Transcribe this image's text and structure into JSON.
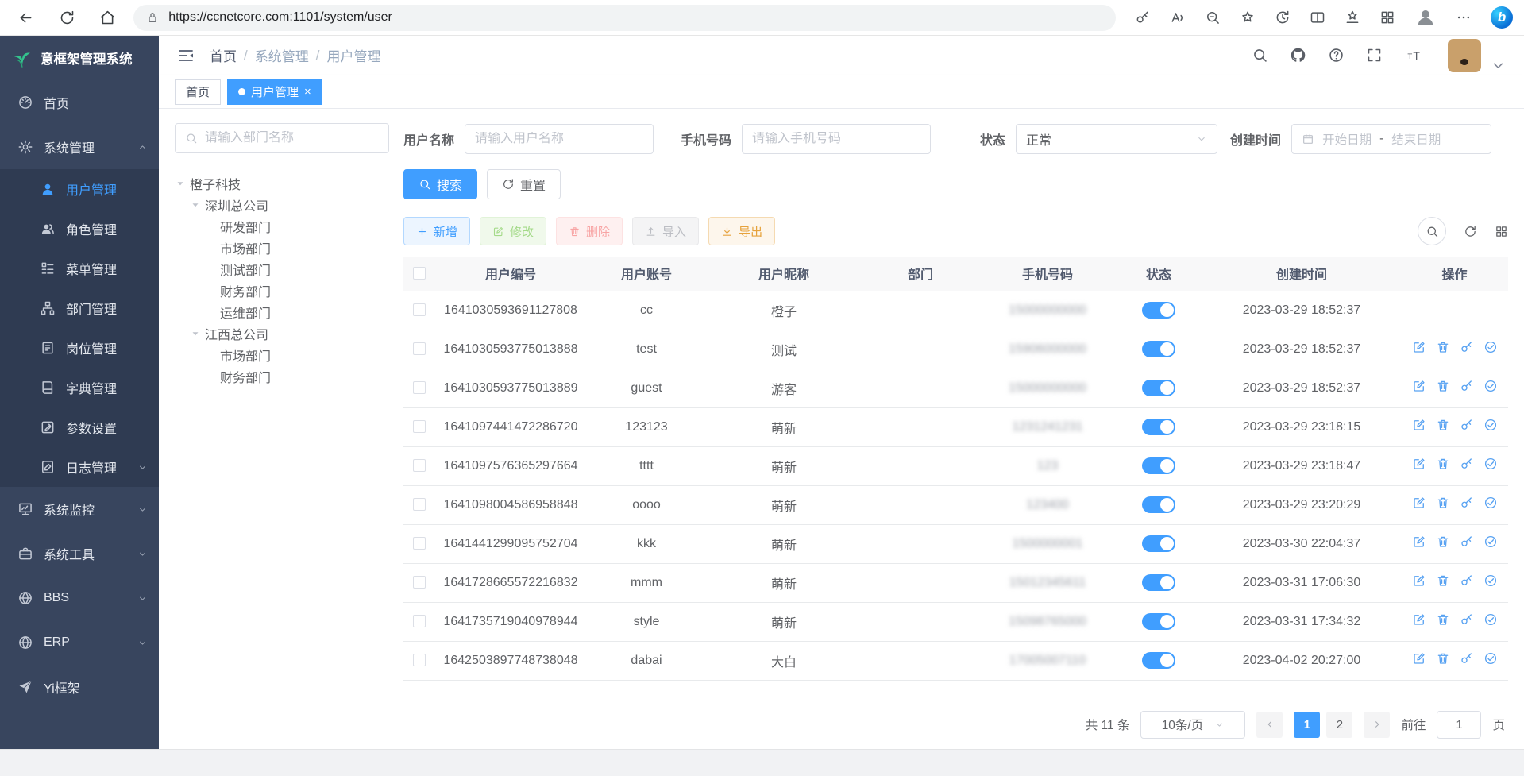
{
  "browser": {
    "url": "https://ccnetcore.com:1101/system/user",
    "nav_icons": [
      "arrow-left",
      "refresh",
      "home"
    ],
    "right_icons": [
      "key",
      "read-aloud",
      "zoom-out",
      "star-plus",
      "history",
      "split",
      "fav-bar",
      "apps-grid",
      "person",
      "dots",
      "copilot"
    ],
    "copilot_letter": "b"
  },
  "app": {
    "title": "意框架管理系统"
  },
  "sidebar": {
    "items": [
      {
        "label": "首页",
        "icon": "dashboard",
        "level": 1
      },
      {
        "label": "系统管理",
        "icon": "gear",
        "level": 1,
        "arrow": "up"
      },
      {
        "label": "用户管理",
        "icon": "user",
        "level": 2,
        "active": true
      },
      {
        "label": "角色管理",
        "icon": "role",
        "level": 2
      },
      {
        "label": "菜单管理",
        "icon": "menu",
        "level": 2
      },
      {
        "label": "部门管理",
        "icon": "dept",
        "level": 2
      },
      {
        "label": "岗位管理",
        "icon": "post",
        "level": 2
      },
      {
        "label": "字典管理",
        "icon": "dict",
        "level": 2
      },
      {
        "label": "参数设置",
        "icon": "param",
        "level": 2
      },
      {
        "label": "日志管理",
        "icon": "log",
        "level": 2,
        "arrow": "down"
      },
      {
        "label": "系统监控",
        "icon": "monitor",
        "level": 1,
        "arrow": "down"
      },
      {
        "label": "系统工具",
        "icon": "tool",
        "level": 1,
        "arrow": "down"
      },
      {
        "label": "BBS",
        "icon": "globe",
        "level": 1,
        "arrow": "down"
      },
      {
        "label": "ERP",
        "icon": "globe",
        "level": 1,
        "arrow": "down"
      },
      {
        "label": "Yi框架",
        "icon": "plane",
        "level": 1
      }
    ]
  },
  "header": {
    "breadcrumb": [
      "首页",
      "系统管理",
      "用户管理"
    ],
    "separator": "/",
    "icons": [
      "search",
      "github",
      "help",
      "fullscreen",
      "text-size"
    ]
  },
  "tabs": [
    {
      "label": "首页",
      "active": false,
      "closable": false
    },
    {
      "label": "用户管理",
      "active": true,
      "closable": true,
      "close_glyph": "×"
    }
  ],
  "tree": {
    "search_placeholder": "请输入部门名称",
    "nodes": [
      {
        "label": "橙子科技",
        "indent": 0,
        "caret": true
      },
      {
        "label": "深圳总公司",
        "indent": 1,
        "caret": true
      },
      {
        "label": "研发部门",
        "indent": 2,
        "caret": false
      },
      {
        "label": "市场部门",
        "indent": 2,
        "caret": false
      },
      {
        "label": "测试部门",
        "indent": 2,
        "caret": false
      },
      {
        "label": "财务部门",
        "indent": 2,
        "caret": false
      },
      {
        "label": "运维部门",
        "indent": 2,
        "caret": false
      },
      {
        "label": "江西总公司",
        "indent": 1,
        "caret": true
      },
      {
        "label": "市场部门",
        "indent": 2,
        "caret": false
      },
      {
        "label": "财务部门",
        "indent": 2,
        "caret": false
      }
    ]
  },
  "filters": {
    "username_label": "用户名称",
    "username_placeholder": "请输入用户名称",
    "phone_label": "手机号码",
    "phone_placeholder": "请输入手机号码",
    "status_label": "状态",
    "status_value": "正常",
    "created_label": "创建时间",
    "date_start": "开始日期",
    "date_sep": "-",
    "date_end": "结束日期",
    "search_label": "搜索",
    "reset_label": "重置"
  },
  "toolbar": {
    "add": "新增",
    "modify": "修改",
    "remove": "删除",
    "import": "导入",
    "export": "导出"
  },
  "table": {
    "columns": [
      "用户编号",
      "用户账号",
      "用户昵称",
      "部门",
      "手机号码",
      "状态",
      "创建时间",
      "操作"
    ],
    "rows": [
      {
        "id": "1641030593691127808",
        "account": "cc",
        "nickname": "橙子",
        "dept": "",
        "phone": "15000000000",
        "phone_blurred": true,
        "status_on": true,
        "created": "2023-03-29 18:52:37",
        "ops": false
      },
      {
        "id": "1641030593775013888",
        "account": "test",
        "nickname": "测试",
        "dept": "",
        "phone": "15906000000",
        "phone_blurred": true,
        "status_on": true,
        "created": "2023-03-29 18:52:37",
        "ops": true
      },
      {
        "id": "1641030593775013889",
        "account": "guest",
        "nickname": "游客",
        "dept": "",
        "phone": "15000000000",
        "phone_blurred": true,
        "status_on": true,
        "created": "2023-03-29 18:52:37",
        "ops": true
      },
      {
        "id": "1641097441472286720",
        "account": "123123",
        "nickname": "萌新",
        "dept": "",
        "phone": "1231241231",
        "phone_blurred": true,
        "status_on": true,
        "created": "2023-03-29 23:18:15",
        "ops": true
      },
      {
        "id": "1641097576365297664",
        "account": "tttt",
        "nickname": "萌新",
        "dept": "",
        "phone": "123",
        "phone_blurred": true,
        "status_on": true,
        "created": "2023-03-29 23:18:47",
        "ops": true
      },
      {
        "id": "1641098004586958848",
        "account": "oooo",
        "nickname": "萌新",
        "dept": "",
        "phone": "123400",
        "phone_blurred": true,
        "status_on": true,
        "created": "2023-03-29 23:20:29",
        "ops": true
      },
      {
        "id": "1641441299095752704",
        "account": "kkk",
        "nickname": "萌新",
        "dept": "",
        "phone": "1500000001",
        "phone_blurred": true,
        "status_on": true,
        "created": "2023-03-30 22:04:37",
        "ops": true
      },
      {
        "id": "1641728665572216832",
        "account": "mmm",
        "nickname": "萌新",
        "dept": "",
        "phone": "15012345611",
        "phone_blurred": true,
        "status_on": true,
        "created": "2023-03-31 17:06:30",
        "ops": true
      },
      {
        "id": "1641735719040978944",
        "account": "style",
        "nickname": "萌新",
        "dept": "",
        "phone": "15098765000",
        "phone_blurred": true,
        "status_on": true,
        "created": "2023-03-31 17:34:32",
        "ops": true
      },
      {
        "id": "1642503897748738048",
        "account": "dabai",
        "nickname": "大白",
        "dept": "",
        "phone": "17005007110",
        "phone_blurred": true,
        "status_on": true,
        "created": "2023-04-02 20:27:00",
        "ops": true
      }
    ],
    "op_icons": [
      "edit",
      "trash",
      "key",
      "check-circle"
    ]
  },
  "pagination": {
    "total": "共 11 条",
    "page_size": "10条/页",
    "pages": [
      "1",
      "2"
    ],
    "current": "1",
    "goto_label": "前往",
    "goto_value": "1",
    "unit_label": "页"
  }
}
